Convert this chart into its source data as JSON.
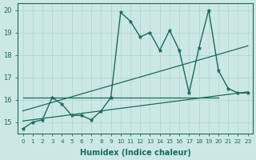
{
  "xlabel": "Humidex (Indice chaleur)",
  "ylabel": "",
  "bg_color": "#cce8e4",
  "line_color": "#1a6b5a",
  "xlim": [
    -0.5,
    23.5
  ],
  "ylim": [
    14.5,
    20.3
  ],
  "xticks": [
    0,
    1,
    2,
    3,
    4,
    5,
    6,
    7,
    8,
    9,
    10,
    11,
    12,
    13,
    14,
    15,
    16,
    17,
    18,
    19,
    20,
    21,
    22,
    23
  ],
  "yticks": [
    15,
    16,
    17,
    18,
    19,
    20
  ],
  "grid_color": "#aed4ce",
  "lines": [
    {
      "x": [
        0,
        1,
        2,
        3,
        4,
        5,
        6,
        7,
        8,
        9,
        10,
        11,
        12,
        13,
        14,
        15,
        16,
        17,
        18,
        19,
        20,
        21,
        22,
        23
      ],
      "y": [
        14.7,
        15.0,
        15.1,
        16.1,
        15.8,
        15.3,
        15.3,
        15.1,
        15.5,
        16.1,
        19.9,
        19.5,
        18.8,
        19.0,
        18.2,
        19.1,
        18.2,
        16.3,
        18.3,
        20.0,
        17.3,
        16.5,
        16.3,
        16.3
      ],
      "marker": "*",
      "lw": 1.0
    },
    {
      "x": [
        0,
        23
      ],
      "y": [
        15.05,
        16.35
      ],
      "marker": null,
      "lw": 0.9
    },
    {
      "x": [
        0,
        23
      ],
      "y": [
        15.5,
        18.4
      ],
      "marker": null,
      "lw": 0.9
    },
    {
      "x": [
        0,
        20
      ],
      "y": [
        16.1,
        16.1
      ],
      "marker": null,
      "lw": 0.9
    }
  ]
}
